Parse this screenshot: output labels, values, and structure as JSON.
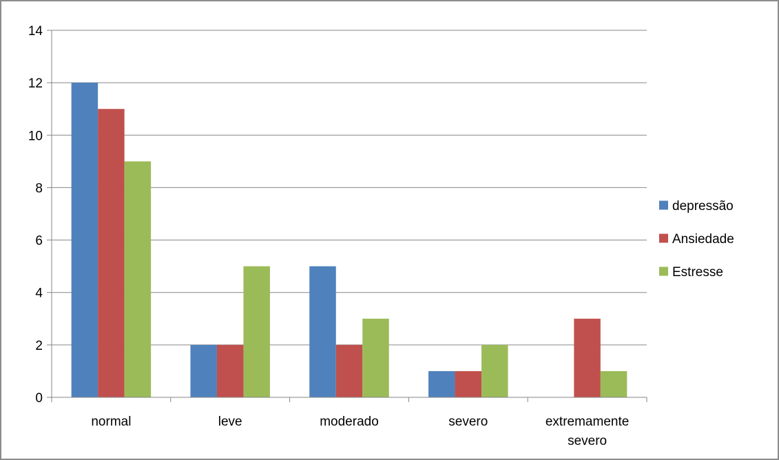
{
  "chart_data": {
    "type": "bar",
    "title": "",
    "xlabel": "",
    "ylabel": "",
    "categories": [
      "normal",
      "leve",
      "moderado",
      "severo",
      "extremamente severo"
    ],
    "category_lines": [
      [
        "normal"
      ],
      [
        "leve"
      ],
      [
        "moderado"
      ],
      [
        "severo"
      ],
      [
        "extremamente",
        "severo"
      ]
    ],
    "series": [
      {
        "name": "depressão",
        "values": [
          12,
          2,
          5,
          1,
          0
        ],
        "color": "#4f81bd"
      },
      {
        "name": "Ansiedade",
        "values": [
          11,
          2,
          2,
          1,
          3
        ],
        "color": "#c0504d"
      },
      {
        "name": "Estresse",
        "values": [
          9,
          5,
          3,
          2,
          1
        ],
        "color": "#9bbb59"
      }
    ],
    "ylim": [
      0,
      14
    ],
    "yticks": [
      0,
      2,
      4,
      6,
      8,
      10,
      12,
      14
    ],
    "grid": true,
    "legend_position": "right"
  }
}
